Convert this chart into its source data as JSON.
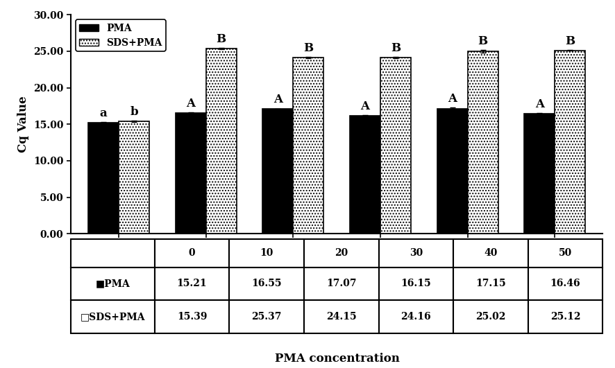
{
  "categories": [
    "0",
    "10",
    "20",
    "30",
    "40",
    "50"
  ],
  "pma_values": [
    15.21,
    16.55,
    17.07,
    16.15,
    17.15,
    16.46
  ],
  "sds_pma_values": [
    15.39,
    25.37,
    24.15,
    24.16,
    25.02,
    25.12
  ],
  "pma_errors": [
    0.08,
    0.08,
    0.08,
    0.08,
    0.12,
    0.08
  ],
  "sds_pma_errors": [
    0.08,
    0.12,
    0.08,
    0.08,
    0.18,
    0.08
  ],
  "pma_labels": [
    "a",
    "A",
    "A",
    "A",
    "A",
    "A"
  ],
  "sds_labels": [
    "b",
    "B",
    "B",
    "B",
    "B",
    "B"
  ],
  "ylabel": "Cq Value",
  "xlabel": "PMA concentration",
  "ylim": [
    0,
    30
  ],
  "yticks": [
    0.0,
    5.0,
    10.0,
    15.0,
    20.0,
    25.0,
    30.0
  ],
  "bar_width": 0.35,
  "pma_color": "#000000",
  "sds_pma_color": "#ffffff",
  "legend_label_pma": "PMA",
  "legend_label_sds": "SDS+PMA",
  "table_pma_label": "■PMA",
  "table_sds_label": "□SDS+PMA",
  "table_pma_row": [
    "15.21",
    "16.55",
    "17.07",
    "16.15",
    "17.15",
    "16.46"
  ],
  "table_sds_row": [
    "15.39",
    "25.37",
    "24.15",
    "24.16",
    "25.02",
    "25.12"
  ]
}
